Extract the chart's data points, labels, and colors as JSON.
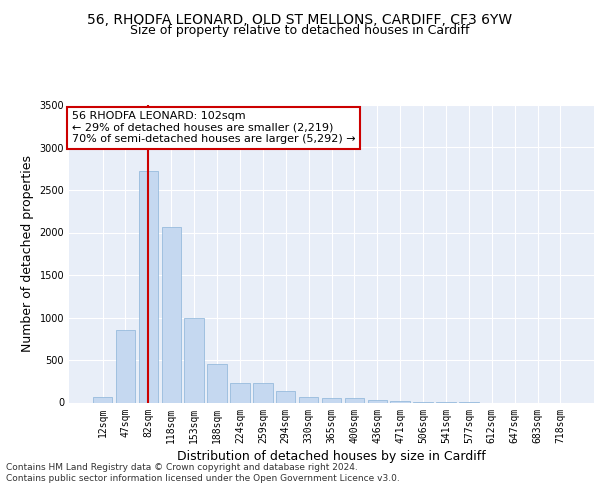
{
  "title_line1": "56, RHODFA LEONARD, OLD ST MELLONS, CARDIFF, CF3 6YW",
  "title_line2": "Size of property relative to detached houses in Cardiff",
  "xlabel": "Distribution of detached houses by size in Cardiff",
  "ylabel": "Number of detached properties",
  "categories": [
    "12sqm",
    "47sqm",
    "82sqm",
    "118sqm",
    "153sqm",
    "188sqm",
    "224sqm",
    "259sqm",
    "294sqm",
    "330sqm",
    "365sqm",
    "400sqm",
    "436sqm",
    "471sqm",
    "506sqm",
    "541sqm",
    "577sqm",
    "612sqm",
    "647sqm",
    "683sqm",
    "718sqm"
  ],
  "values": [
    60,
    850,
    2720,
    2060,
    1000,
    450,
    225,
    225,
    130,
    60,
    55,
    50,
    30,
    15,
    5,
    5,
    5,
    0,
    0,
    0,
    0
  ],
  "bar_color": "#c5d8f0",
  "bar_edge_color": "#8ab4d8",
  "vline_x": 2.0,
  "vline_color": "#cc0000",
  "annotation_text": "56 RHODFA LEONARD: 102sqm\n← 29% of detached houses are smaller (2,219)\n70% of semi-detached houses are larger (5,292) →",
  "annotation_box_color": "#ffffff",
  "annotation_box_edge": "#cc0000",
  "ylim": [
    0,
    3500
  ],
  "yticks": [
    0,
    500,
    1000,
    1500,
    2000,
    2500,
    3000,
    3500
  ],
  "background_color": "#e8eef8",
  "grid_color": "#ffffff",
  "footer_line1": "Contains HM Land Registry data © Crown copyright and database right 2024.",
  "footer_line2": "Contains public sector information licensed under the Open Government Licence v3.0.",
  "title_fontsize": 10,
  "subtitle_fontsize": 9,
  "axis_label_fontsize": 9,
  "tick_fontsize": 7,
  "footer_fontsize": 6.5,
  "annotation_fontsize": 8
}
